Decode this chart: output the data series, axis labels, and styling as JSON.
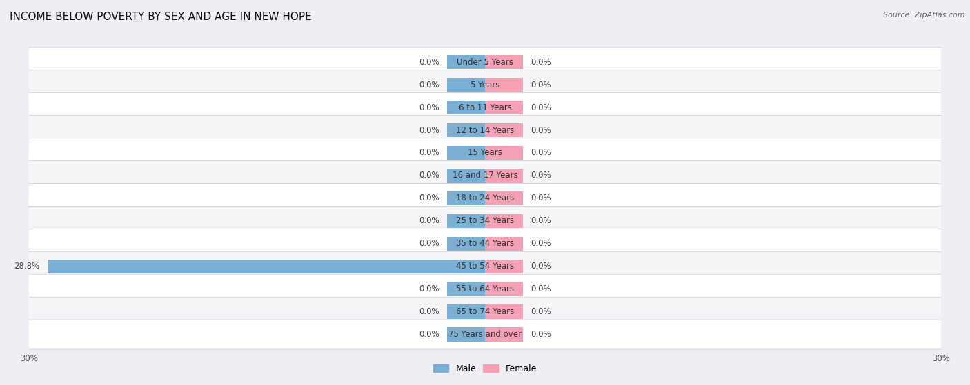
{
  "title": "INCOME BELOW POVERTY BY SEX AND AGE IN NEW HOPE",
  "source": "Source: ZipAtlas.com",
  "categories": [
    "Under 5 Years",
    "5 Years",
    "6 to 11 Years",
    "12 to 14 Years",
    "15 Years",
    "16 and 17 Years",
    "18 to 24 Years",
    "25 to 34 Years",
    "35 to 44 Years",
    "45 to 54 Years",
    "55 to 64 Years",
    "65 to 74 Years",
    "75 Years and over"
  ],
  "male_values": [
    0.0,
    0.0,
    0.0,
    0.0,
    0.0,
    0.0,
    0.0,
    0.0,
    0.0,
    28.8,
    0.0,
    0.0,
    0.0
  ],
  "female_values": [
    0.0,
    0.0,
    0.0,
    0.0,
    0.0,
    0.0,
    0.0,
    0.0,
    0.0,
    0.0,
    0.0,
    0.0,
    0.0
  ],
  "male_color": "#7bafd4",
  "female_color": "#f4a0b5",
  "male_label": "Male",
  "female_label": "Female",
  "xlim": 30.0,
  "stub_size": 2.5,
  "background_color": "#eeeef4",
  "row_bg_color": "#f5f5f8",
  "row_alt_color": "#ffffff",
  "row_border_color": "#d0d0d8",
  "title_fontsize": 11,
  "label_fontsize": 8.5,
  "tick_fontsize": 8.5,
  "source_fontsize": 8,
  "value_label_color": "#444444",
  "category_label_color": "#333333"
}
